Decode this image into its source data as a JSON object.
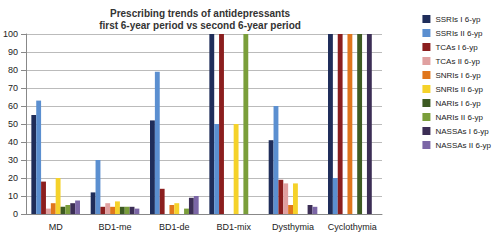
{
  "chart_data": {
    "type": "bar",
    "title": "Prescribing trends of antidepressants\nfirst 6-year period vs second 6-year period",
    "categories": [
      "MD",
      "BD1-me",
      "BD1-de",
      "BD1-mix",
      "Dysthymia",
      "Cyclothymia"
    ],
    "series": [
      {
        "name": "SSRIs I 6-yp",
        "color": "#1f2d5a",
        "values": [
          55,
          12,
          52,
          100,
          41,
          100
        ]
      },
      {
        "name": "SSRIs II 6-yp",
        "color": "#5b8fd0",
        "values": [
          63,
          30,
          79,
          50,
          60,
          20
        ]
      },
      {
        "name": "TCAs I 6-yp",
        "color": "#8b1e1e",
        "values": [
          18,
          4,
          14,
          100,
          19,
          100
        ]
      },
      {
        "name": "TCAs II 6-yp",
        "color": "#e0a0a0",
        "values": [
          3,
          6,
          0,
          0,
          17,
          0
        ]
      },
      {
        "name": "SNRIs I 6-yp",
        "color": "#e0761c",
        "values": [
          6,
          4,
          5,
          0,
          5,
          100
        ]
      },
      {
        "name": "SNRIs II 6-yp",
        "color": "#f5d22a",
        "values": [
          20,
          7,
          6,
          50,
          17,
          0
        ]
      },
      {
        "name": "NARIs I 6-yp",
        "color": "#3d5a22",
        "values": [
          4,
          4,
          0,
          0,
          0,
          100
        ]
      },
      {
        "name": "NARIs II 6-yp",
        "color": "#7a9e3a",
        "values": [
          5,
          4,
          3,
          100,
          0,
          0
        ]
      },
      {
        "name": "NASSAs I 6-yp",
        "color": "#3c2e55",
        "values": [
          6,
          4,
          9,
          0,
          5,
          100
        ]
      },
      {
        "name": "NASSAs II 6-yp",
        "color": "#7b66a6",
        "values": [
          7.5,
          3,
          10,
          0,
          4,
          0
        ]
      }
    ],
    "ylim": [
      0,
      100
    ],
    "yticks": [
      0,
      10,
      20,
      30,
      40,
      50,
      60,
      70,
      80,
      90,
      100
    ],
    "grid": true,
    "legend": "right"
  }
}
